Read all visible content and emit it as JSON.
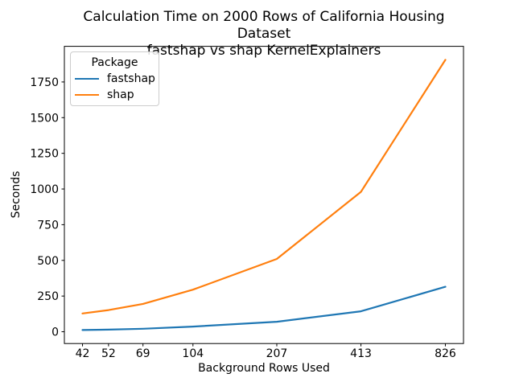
{
  "chart": {
    "title_line1": "Calculation Time on 2000 Rows of California Housing Dataset",
    "title_line2": "fastshap vs shap KernelExplainers"
  },
  "chart_data": {
    "type": "line",
    "title": "Calculation Time on 2000 Rows of California Housing Dataset\nfastshap vs shap KernelExplainers",
    "xlabel": "Background Rows Used",
    "ylabel": "Seconds",
    "x_scale": "log2",
    "x": [
      42,
      52,
      69,
      104,
      207,
      413,
      826
    ],
    "xtick_labels": [
      "42",
      "52",
      "69",
      "104",
      "207",
      "413",
      "826"
    ],
    "yticks": [
      0,
      250,
      500,
      750,
      1000,
      1250,
      1500,
      1750
    ],
    "ylim_data_min": 12,
    "ylim_data_max": 1905,
    "series": [
      {
        "name": "fastshap",
        "color": "#1f77b4",
        "values": [
          12,
          15,
          21,
          36,
          70,
          143,
          315
        ]
      },
      {
        "name": "shap",
        "color": "#ff7f0e",
        "values": [
          128,
          152,
          195,
          295,
          510,
          980,
          1905
        ]
      }
    ],
    "legend_title": "Package",
    "legend_position": "upper left",
    "grid": false,
    "background": "#ffffff",
    "axes_color": "#000000",
    "text_color": "#000000"
  }
}
